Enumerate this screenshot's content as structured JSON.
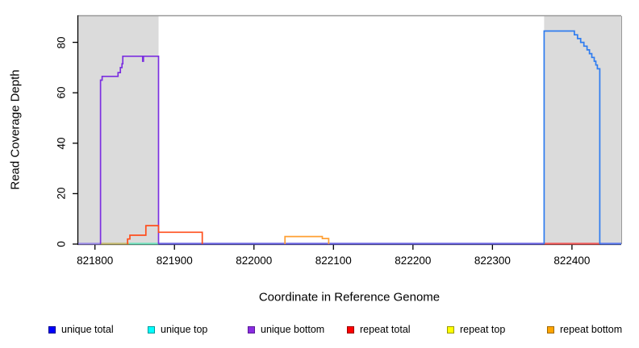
{
  "axes": {
    "x": {
      "title": "Coordinate in Reference Genome",
      "ticks": [
        821800,
        821900,
        822000,
        822100,
        822200,
        822300,
        822400
      ],
      "lim": [
        821779,
        822462
      ]
    },
    "y": {
      "title": "Read Coverage Depth",
      "ticks": [
        0,
        20,
        40,
        60,
        80
      ],
      "lim": [
        0,
        90.4
      ]
    }
  },
  "legend": [
    {
      "label": "unique total",
      "color": "#0000FF",
      "border": "#00008B"
    },
    {
      "label": "unique top",
      "color": "#00FFFF",
      "border": "#009999"
    },
    {
      "label": "unique bottom",
      "color": "#8A2BE2",
      "border": "#5A1B96"
    },
    {
      "label": "repeat total",
      "color": "#FF0000",
      "border": "#990000"
    },
    {
      "label": "repeat top",
      "color": "#FFFF00",
      "border": "#999900"
    },
    {
      "label": "repeat bottom",
      "color": "#FFA500",
      "border": "#9E6800"
    }
  ],
  "chart_data": {
    "type": "line",
    "style": "step",
    "title": "",
    "xlabel": "Coordinate in Reference Genome",
    "ylabel": "Read Coverage Depth",
    "xlim": [
      821779,
      822462
    ],
    "ylim": [
      0,
      90.4
    ],
    "grid": false,
    "shaded_regions": [
      {
        "name": "left-gray-region",
        "from": 821779,
        "to": 821880,
        "color": "#DBDBDB"
      },
      {
        "name": "right-gray-region",
        "from": 822365,
        "to": 822462,
        "color": "#DBDBDB"
      }
    ],
    "series": [
      {
        "name": "unique bottom",
        "color": "#7B2FE0",
        "points": [
          [
            821807,
            0
          ],
          [
            821807,
            65
          ],
          [
            821809,
            65
          ],
          [
            821809,
            66.5
          ],
          [
            821829,
            66.5
          ],
          [
            821829,
            68
          ],
          [
            821832,
            68
          ],
          [
            821832,
            70
          ],
          [
            821834,
            70
          ],
          [
            821834,
            71.5
          ],
          [
            821835,
            71.5
          ],
          [
            821835,
            74.5
          ],
          [
            821860,
            74.5
          ],
          [
            821860,
            72.5
          ],
          [
            821861,
            72.5
          ],
          [
            821861,
            74.5
          ],
          [
            821880,
            74.5
          ],
          [
            821880,
            0
          ]
        ]
      },
      {
        "name": "repeat total",
        "color": "#FF4E1C",
        "points": [
          [
            821841,
            0
          ],
          [
            821841,
            2
          ],
          [
            821844,
            2
          ],
          [
            821844,
            3.5
          ],
          [
            821864,
            3.5
          ],
          [
            821864,
            7.3
          ],
          [
            821880,
            7.3
          ],
          [
            821880,
            4.7
          ],
          [
            821935,
            4.7
          ],
          [
            821935,
            0
          ]
        ]
      },
      {
        "name": "repeat bottom",
        "color": "#FF9F33",
        "points": [
          [
            822039,
            0
          ],
          [
            822039,
            3
          ],
          [
            822086,
            3
          ],
          [
            822086,
            2.2
          ],
          [
            822094,
            2.2
          ],
          [
            822094,
            0
          ]
        ]
      },
      {
        "name": "unique total",
        "color": "#2E7CF0",
        "points": [
          [
            822365,
            0
          ],
          [
            822365,
            84.5
          ],
          [
            822403,
            84.5
          ],
          [
            822403,
            83
          ],
          [
            822407,
            83
          ],
          [
            822407,
            81.5
          ],
          [
            822411,
            81.5
          ],
          [
            822411,
            80
          ],
          [
            822415,
            80
          ],
          [
            822415,
            78.5
          ],
          [
            822419,
            78.5
          ],
          [
            822419,
            77
          ],
          [
            822422,
            77
          ],
          [
            822422,
            75.5
          ],
          [
            822425,
            75.5
          ],
          [
            822425,
            74
          ],
          [
            822428,
            74
          ],
          [
            822428,
            72.5
          ],
          [
            822430,
            72.5
          ],
          [
            822430,
            71
          ],
          [
            822432,
            71
          ],
          [
            822432,
            69.5
          ],
          [
            822435,
            69.5
          ],
          [
            822435,
            0
          ]
        ]
      }
    ],
    "baseline_segments": [
      {
        "name": "baseline-unique-bottom-left",
        "from": 821779,
        "to": 821807,
        "color": "#9C8CE8"
      },
      {
        "name": "baseline-repeat-top",
        "from": 821807,
        "to": 821843,
        "color": "#C5BB72"
      },
      {
        "name": "baseline-unique-top",
        "from": 821843,
        "to": 821880,
        "color": "#72E2BE"
      },
      {
        "name": "baseline-mid",
        "from": 821880,
        "to": 822365,
        "color": "#6B64E4"
      },
      {
        "name": "baseline-repeat-total-right",
        "from": 822365,
        "to": 822435,
        "color": "#F15B5B"
      },
      {
        "name": "baseline-right",
        "from": 822435,
        "to": 822462,
        "color": "#5E7BF0"
      }
    ],
    "frame": {
      "top_border_color": "#999999",
      "axis_color": "#000000"
    }
  }
}
